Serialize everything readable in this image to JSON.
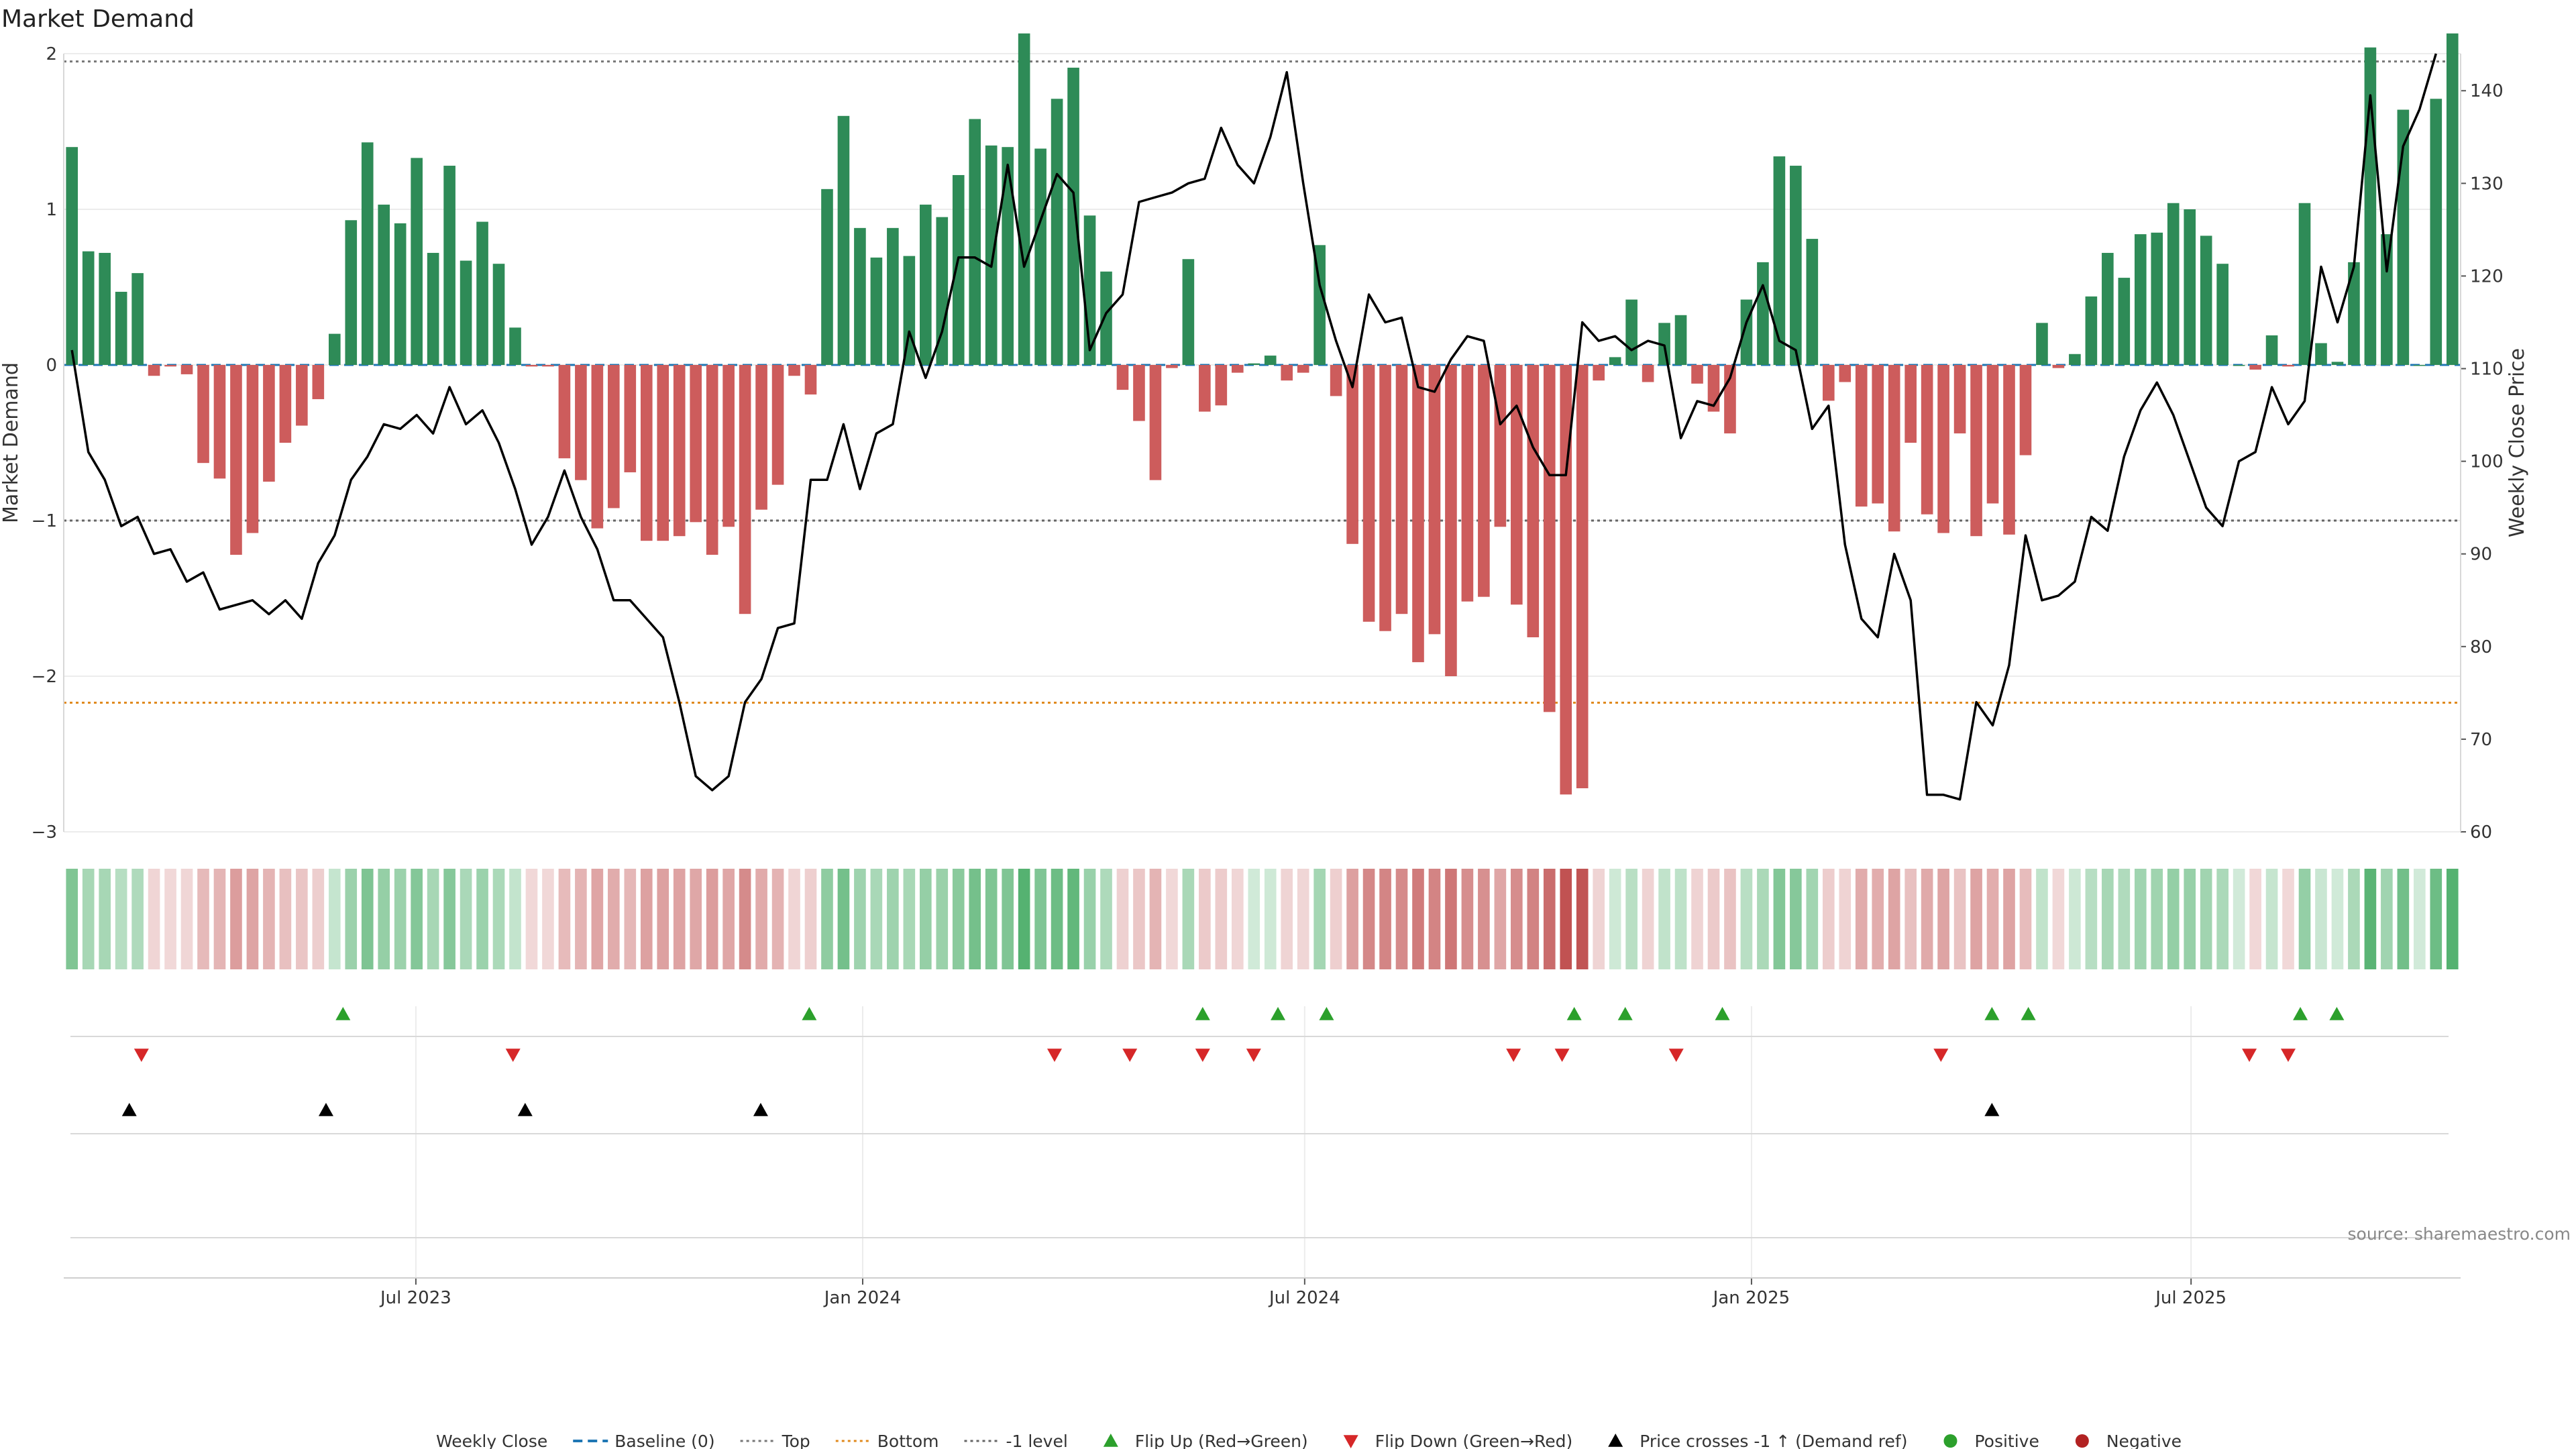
{
  "chart_data": {
    "type": "bar",
    "title": "Market Demand",
    "ylabel_left": "Market Demand",
    "ylabel_right": "Weekly Close Price",
    "source_note": "source: sharemaestro.com",
    "grid": true,
    "legend_placement": "bottom-center",
    "colors": {
      "positive": "#2e8b57",
      "negative": "#cd5c5c",
      "price_line": "#000000",
      "baseline": "#1f77b4",
      "top": "#777777",
      "bottom": "#e08a1e",
      "minus1": "#666666",
      "flip_up": "#2ca02c",
      "flip_down": "#d62728",
      "cross": "#000000",
      "dot_positive": "#2ca02c",
      "dot_negative": "#b22222"
    },
    "x_start": "2023-02-06",
    "x_end": "2025-10-20",
    "x_tick_dates": [
      "2023-07-01",
      "2024-01-01",
      "2024-07-01",
      "2025-01-01",
      "2025-07-01"
    ],
    "x_tick_labels": [
      "Jul 2023",
      "Jan 2024",
      "Jul 2024",
      "Jan 2025",
      "Jul 2025"
    ],
    "y_left_lim": [
      -3.0,
      2.0
    ],
    "y_left_ticks": [
      2,
      1,
      0,
      -1,
      -2,
      -3
    ],
    "y_left_tick_labels": [
      "2",
      "1",
      "0",
      "−1",
      "−2",
      "−3"
    ],
    "y_right_lim": [
      60,
      144
    ],
    "y_right_ticks": [
      60,
      70,
      80,
      90,
      100,
      110,
      120,
      130,
      140
    ],
    "y_right_tick_labels": [
      "60",
      "70",
      "80",
      "90",
      "100",
      "110",
      "120",
      "130",
      "140"
    ],
    "top_level": 1.95,
    "bottom_level": -2.17,
    "minus1_level": -1.0,
    "baseline_level": 0,
    "demand": [
      1.4,
      0.73,
      0.72,
      0.47,
      0.59,
      -0.07,
      -0.01,
      -0.06,
      -0.63,
      -0.73,
      -1.22,
      -1.08,
      -0.75,
      -0.5,
      -0.39,
      -0.22,
      0.2,
      0.93,
      1.43,
      1.03,
      0.91,
      1.33,
      0.72,
      1.28,
      0.67,
      0.92,
      0.65,
      0.24,
      -0.01,
      -0.01,
      -0.6,
      -0.74,
      -1.05,
      -0.92,
      -0.69,
      -1.13,
      -1.13,
      -1.1,
      -1.01,
      -1.22,
      -1.04,
      -1.6,
      -0.93,
      -0.77,
      -0.07,
      -0.19,
      1.13,
      1.6,
      0.88,
      0.69,
      0.88,
      0.7,
      1.03,
      0.95,
      1.22,
      1.58,
      1.41,
      1.4,
      2.13,
      1.39,
      1.71,
      1.91,
      0.96,
      0.6,
      -0.16,
      -0.36,
      -0.74,
      -0.02,
      0.68,
      -0.3,
      -0.26,
      -0.05,
      0.01,
      0.06,
      -0.1,
      -0.05,
      0.77,
      -0.2,
      -1.15,
      -1.65,
      -1.71,
      -1.6,
      -1.91,
      -1.73,
      -2.0,
      -1.52,
      -1.49,
      -1.04,
      -1.54,
      -1.75,
      -2.23,
      -2.76,
      -2.72,
      -0.1,
      0.05,
      0.42,
      -0.11,
      0.27,
      0.32,
      -0.12,
      -0.3,
      -0.44,
      0.42,
      0.66,
      1.34,
      1.28,
      0.81,
      -0.23,
      -0.11,
      -0.91,
      -0.89,
      -1.07,
      -0.5,
      -0.96,
      -1.08,
      -0.44,
      -1.1,
      -0.89,
      -1.09,
      -0.58,
      0.27,
      -0.02,
      0.07,
      0.44,
      0.72,
      0.56,
      0.84,
      0.85,
      1.04,
      1.0,
      0.83,
      0.65,
      0.0,
      -0.03,
      0.19,
      -0.01,
      1.04,
      0.14,
      0.02,
      0.66,
      2.04,
      0.84,
      1.64,
      0.0,
      1.71,
      2.13
    ],
    "weekly_close": [
      112,
      101,
      98,
      93,
      94,
      90,
      90.5,
      87,
      88,
      84,
      84.5,
      85,
      83.5,
      85,
      83,
      89,
      92,
      98,
      100.5,
      104,
      103.5,
      105,
      103,
      108,
      104,
      105.5,
      102,
      97,
      91,
      94,
      99,
      94,
      90.5,
      85,
      85,
      83,
      81,
      74,
      66,
      64.5,
      66,
      74,
      76.5,
      82,
      82.5,
      98,
      98,
      104,
      97,
      103,
      104,
      114,
      109,
      114,
      122,
      122,
      121,
      132,
      121,
      126,
      131,
      129,
      112,
      116,
      118,
      128,
      128.5,
      129,
      130,
      130.5,
      136,
      132,
      130,
      135,
      142,
      130,
      119,
      113,
      108,
      118,
      115,
      115.5,
      108,
      107.5,
      111,
      113.5,
      113,
      104,
      106,
      101.5,
      98.5,
      98.5,
      115,
      113,
      113.5,
      112,
      113,
      112.5,
      102.5,
      106.5,
      106,
      109,
      115,
      119,
      113,
      112,
      103.5,
      106,
      91,
      83,
      81,
      90,
      85,
      64,
      64,
      63.5,
      74,
      71.5,
      78,
      92,
      85,
      85.5,
      87,
      94,
      92.5,
      100.5,
      105.5,
      108.5,
      105,
      100,
      95,
      93,
      100,
      101,
      108,
      104,
      106.5,
      121,
      115,
      121,
      139.5,
      120.5,
      134,
      138,
      144
    ],
    "flip_up_dates": [
      "2023-06-01",
      "2023-12-10",
      "2024-05-20",
      "2024-06-20",
      "2024-07-10",
      "2024-10-20",
      "2024-11-10",
      "2024-12-20",
      "2025-04-10",
      "2025-04-25",
      "2025-08-15",
      "2025-08-30"
    ],
    "flip_down_dates": [
      "2023-03-10",
      "2023-08-10",
      "2024-03-20",
      "2024-04-20",
      "2024-05-20",
      "2024-06-10",
      "2024-09-25",
      "2024-10-15",
      "2024-12-01",
      "2025-03-20",
      "2025-07-25",
      "2025-08-10"
    ],
    "cross_dates": [
      "2023-03-05",
      "2023-05-25",
      "2023-08-15",
      "2023-11-20",
      "2025-04-10"
    ],
    "legend": [
      {
        "key": "weekly_close",
        "label": "Weekly Close",
        "marker": "line"
      },
      {
        "key": "baseline",
        "label": "Baseline (0)",
        "marker": "dash"
      },
      {
        "key": "top",
        "label": "Top",
        "marker": "dot-line"
      },
      {
        "key": "bottom",
        "label": "Bottom",
        "marker": "dot-line"
      },
      {
        "key": "minus1",
        "label": "-1 level",
        "marker": "dot-line"
      },
      {
        "key": "flip_up",
        "label": "Flip Up (Red→Green)",
        "marker": "triangle-up"
      },
      {
        "key": "flip_down",
        "label": "Flip Down (Green→Red)",
        "marker": "triangle-down"
      },
      {
        "key": "cross",
        "label": "Price crosses -1 ↑ (Demand ref)",
        "marker": "triangle-up"
      },
      {
        "key": "dot_positive",
        "label": "Positive",
        "marker": "circle"
      },
      {
        "key": "dot_negative",
        "label": "Negative",
        "marker": "circle"
      }
    ]
  }
}
